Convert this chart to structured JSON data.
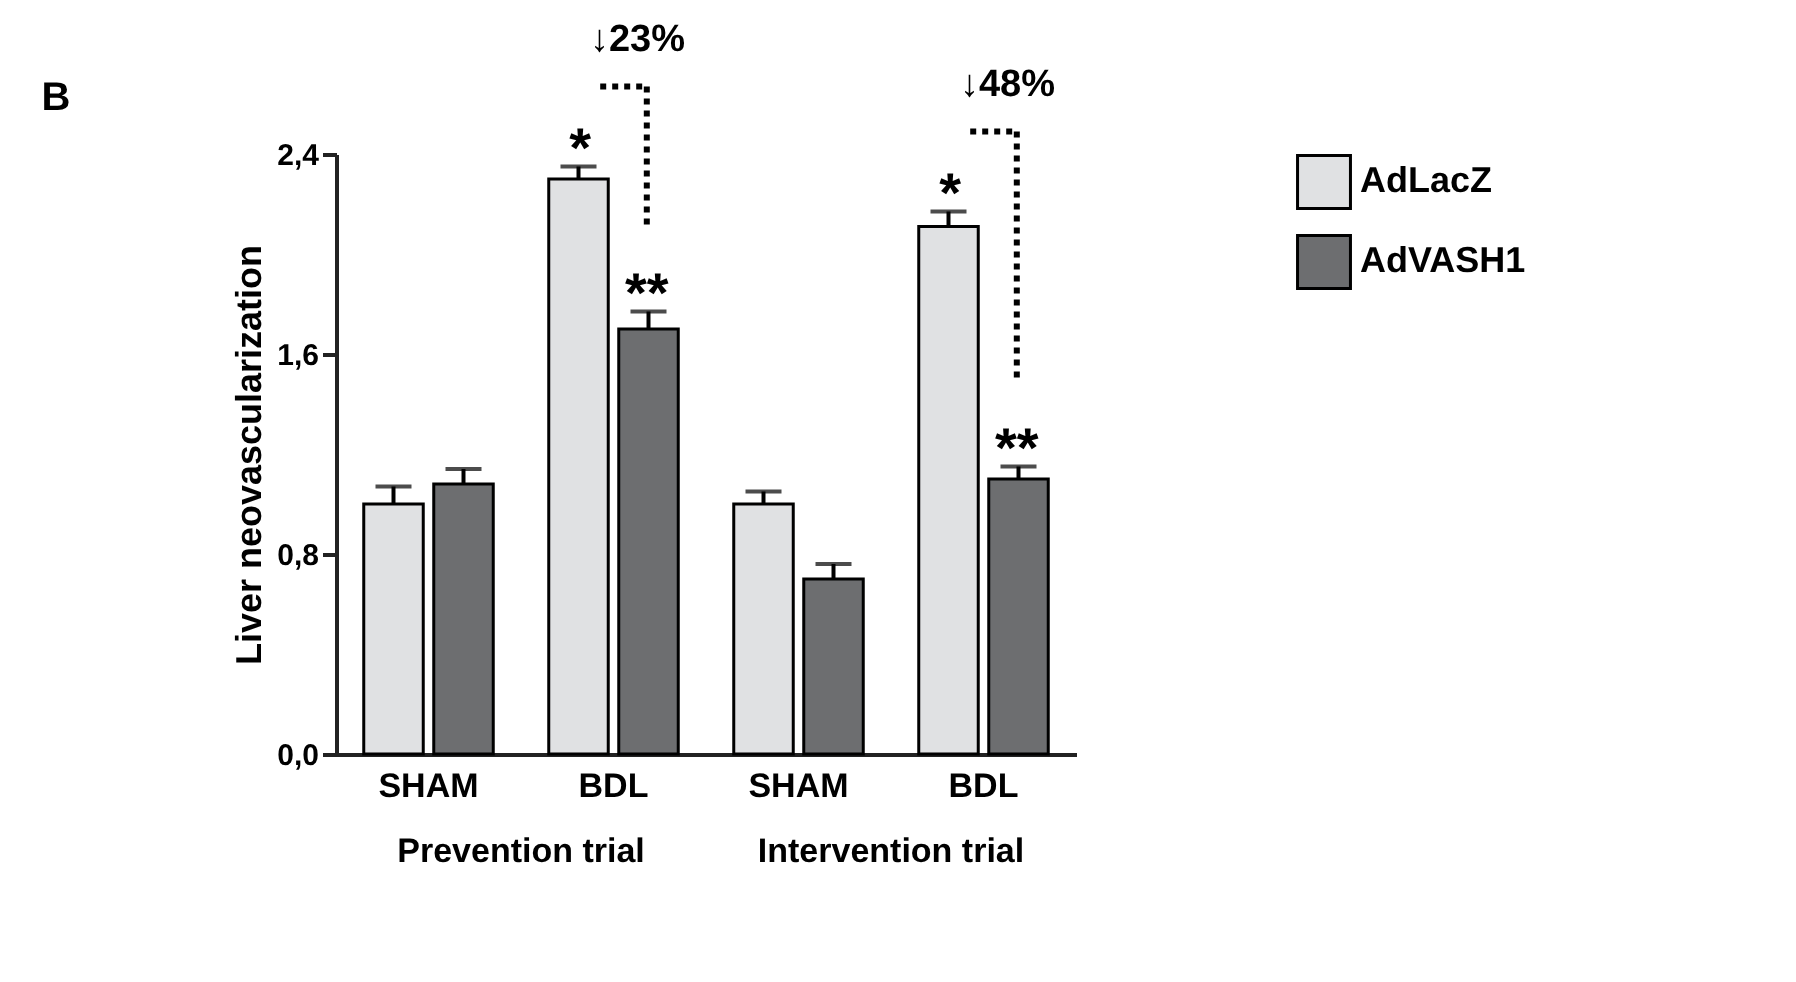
{
  "chart_data": {
    "type": "bar",
    "ylabel": "Liver neovascularization",
    "categories": [
      "SHAM",
      "BDL",
      "SHAM",
      "BDL"
    ],
    "series": [
      {
        "name": "AdLacZ",
        "color": "#e0e1e3",
        "values": [
          1.0,
          2.3,
          1.0,
          2.11
        ],
        "errors": [
          0.07,
          0.05,
          0.05,
          0.06
        ]
      },
      {
        "name": "AdVASH1",
        "color": "#6d6e70",
        "values": [
          1.08,
          1.7,
          0.7,
          1.1
        ],
        "errors": [
          0.06,
          0.07,
          0.06,
          0.05
        ]
      }
    ],
    "ylim": [
      0,
      2.4
    ],
    "yticks": [
      {
        "value": 0,
        "label": "0,0"
      },
      {
        "value": 0.8,
        "label": "0,8"
      },
      {
        "value": 1.6,
        "label": "1,6"
      },
      {
        "value": 2.4,
        "label": "2,4"
      }
    ],
    "grid": false,
    "legend": "right",
    "annotations": [
      "B",
      "↓23%",
      "↓48%",
      "*",
      "**",
      "*",
      "**",
      "Prevention trial",
      "Intervention trial"
    ]
  }
}
